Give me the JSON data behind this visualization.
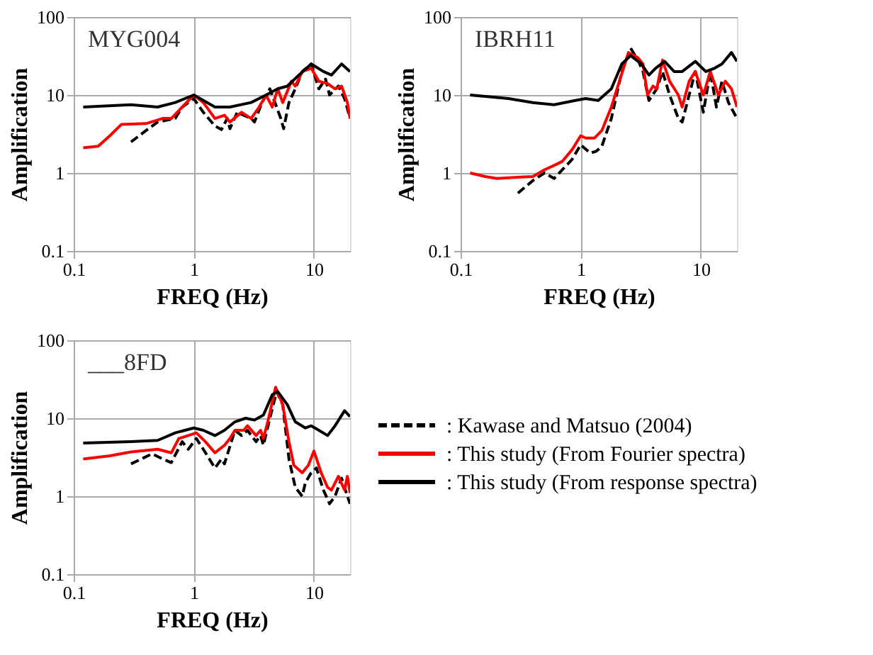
{
  "chart_data": [
    {
      "type": "line",
      "annotations": [
        "MYG004"
      ],
      "xlabel": "FREQ (Hz)",
      "ylabel": "Amplification",
      "log": "xy",
      "grid": true,
      "legend": false,
      "xlim": [
        0.1,
        20
      ],
      "xticks": [
        0.1,
        1,
        10
      ],
      "ylim": [
        0.1,
        100
      ],
      "yticks": [
        0.1,
        1,
        10,
        100
      ],
      "series": [
        {
          "color": "#000000",
          "line_style": "dashed",
          "x": [
            0.3,
            0.4,
            0.5,
            0.7,
            0.8,
            1,
            1.2,
            1.5,
            1.7,
            1.9,
            2,
            2.3,
            3,
            3.2,
            3.7,
            4.3,
            5.3,
            5.6,
            6.2,
            7,
            8,
            9.5,
            11,
            12.5,
            13.5,
            16,
            18,
            20
          ],
          "values": [
            2.5,
            3.5,
            4.5,
            5,
            7,
            9,
            6,
            4,
            3.6,
            5,
            3.7,
            6,
            5,
            4.5,
            8,
            12,
            5,
            3.7,
            8,
            12,
            20,
            25,
            12,
            16,
            10,
            13,
            9,
            5
          ]
        },
        {
          "color": "#ff0000",
          "line_style": "solid",
          "x": [
            0.12,
            0.16,
            0.2,
            0.25,
            0.4,
            0.55,
            0.65,
            0.8,
            1,
            1.2,
            1.5,
            1.8,
            2,
            2.5,
            3,
            3.5,
            4,
            4.5,
            5,
            5.5,
            6.5,
            7,
            8,
            9.5,
            11,
            13,
            15,
            17,
            19,
            20
          ],
          "values": [
            2.1,
            2.2,
            3,
            4.2,
            4.3,
            5,
            5,
            7,
            10,
            8,
            5,
            5.5,
            4.5,
            6,
            5,
            7,
            10,
            7,
            12,
            8,
            15,
            13,
            20,
            22,
            15,
            14,
            12,
            13,
            8,
            5
          ]
        },
        {
          "color": "#000000",
          "line_style": "solid",
          "x": [
            0.12,
            0.3,
            0.5,
            0.7,
            1,
            1.5,
            2,
            3,
            4,
            5,
            6,
            7.5,
            9.5,
            12,
            14,
            17,
            20
          ],
          "values": [
            7,
            7.5,
            7,
            8,
            10,
            7,
            7,
            8,
            10,
            12,
            13,
            18,
            25,
            20,
            18,
            25,
            20
          ]
        }
      ]
    },
    {
      "type": "line",
      "annotations": [
        "IBRH11"
      ],
      "xlabel": "FREQ (Hz)",
      "ylabel": "Amplification",
      "log": "xy",
      "grid": true,
      "legend": false,
      "xlim": [
        0.1,
        20
      ],
      "xticks": [
        0.1,
        1,
        10
      ],
      "ylim": [
        0.1,
        100
      ],
      "yticks": [
        0.1,
        1,
        10,
        100
      ],
      "series": [
        {
          "color": "#000000",
          "line_style": "dashed",
          "x": [
            0.3,
            0.4,
            0.5,
            0.6,
            0.85,
            1,
            1.2,
            1.35,
            1.5,
            1.8,
            2.2,
            2.6,
            3,
            3.3,
            3.7,
            4.3,
            4.8,
            5.5,
            6.5,
            7,
            8,
            9,
            10.5,
            12,
            13.5,
            15,
            17,
            20
          ],
          "values": [
            0.55,
            0.8,
            1,
            0.85,
            1.5,
            2.3,
            1.8,
            1.9,
            2.2,
            5,
            20,
            40,
            28,
            20,
            8.5,
            12,
            20,
            10,
            5,
            4.5,
            10,
            20,
            6,
            20,
            7,
            15,
            8,
            5
          ]
        },
        {
          "color": "#ff0000",
          "line_style": "solid",
          "x": [
            0.12,
            0.16,
            0.2,
            0.3,
            0.4,
            0.5,
            0.6,
            0.7,
            0.85,
            1,
            1.1,
            1.3,
            1.5,
            1.8,
            2.1,
            2.5,
            3,
            3.3,
            3.6,
            4,
            4.3,
            4.8,
            5.5,
            6.5,
            7,
            8,
            9,
            10.5,
            12,
            14,
            16,
            18,
            20
          ],
          "values": [
            1,
            0.9,
            0.85,
            0.88,
            0.9,
            1.1,
            1.25,
            1.4,
            2,
            3,
            2.8,
            2.8,
            3.5,
            7,
            15,
            35,
            30,
            25,
            10,
            13,
            12,
            28,
            15,
            10,
            7,
            15,
            20,
            10,
            20,
            10,
            15,
            12,
            7
          ]
        },
        {
          "color": "#000000",
          "line_style": "solid",
          "x": [
            0.12,
            0.25,
            0.4,
            0.6,
            0.9,
            1.1,
            1.4,
            1.8,
            2.2,
            2.6,
            3.2,
            3.7,
            4.2,
            5,
            6,
            7,
            9,
            11,
            13,
            15,
            18,
            20
          ],
          "values": [
            10,
            9,
            8,
            7.5,
            8.5,
            9,
            8.5,
            12,
            25,
            32,
            25,
            18,
            22,
            27,
            20,
            20,
            27,
            20,
            22,
            25,
            35,
            27
          ]
        }
      ]
    },
    {
      "type": "line",
      "annotations": [
        "___8FD"
      ],
      "xlabel": "FREQ (Hz)",
      "ylabel": "Amplification",
      "log": "xy",
      "grid": true,
      "legend": "right",
      "xlim": [
        0.1,
        20
      ],
      "xticks": [
        0.1,
        1,
        10
      ],
      "ylim": [
        0.1,
        100
      ],
      "yticks": [
        0.1,
        1,
        10,
        100
      ],
      "series": [
        {
          "name": ": Kawase and Matsuo (2004)",
          "color": "#000000",
          "line_style": "dashed",
          "x": [
            0.3,
            0.45,
            0.55,
            0.65,
            0.8,
            0.9,
            1.05,
            1.2,
            1.5,
            1.7,
            1.8,
            2.2,
            2.5,
            2.8,
            3.3,
            3.6,
            3.8,
            4.3,
            4.9,
            5.5,
            6.2,
            7,
            8,
            8.5,
            9.5,
            10.5,
            12,
            13.5,
            15,
            17,
            19,
            20
          ],
          "values": [
            2.6,
            3.5,
            3,
            2.7,
            5,
            4,
            5.5,
            4,
            2.3,
            3,
            2.6,
            7,
            6,
            7,
            5,
            6,
            4.5,
            10,
            22,
            15,
            3,
            1.3,
            1,
            1.5,
            2,
            2.3,
            1.2,
            0.8,
            1,
            1.7,
            1,
            0.8
          ]
        },
        {
          "name": ": This study (From Fourier spectra)",
          "color": "#ff0000",
          "line_style": "solid",
          "x": [
            0.12,
            0.2,
            0.3,
            0.5,
            0.65,
            0.75,
            0.9,
            1.05,
            1.25,
            1.5,
            1.8,
            2,
            2.2,
            2.6,
            2.8,
            3.3,
            3.6,
            3.8,
            4.2,
            4.8,
            5.5,
            6.2,
            6.8,
            8,
            9,
            10,
            11.5,
            13,
            14,
            16,
            18,
            19,
            20
          ],
          "values": [
            3,
            3.3,
            3.7,
            4,
            3.6,
            5.5,
            6,
            6.5,
            5,
            3.6,
            4.5,
            5.5,
            7,
            7,
            8,
            6,
            7,
            5.5,
            10,
            25,
            15,
            5,
            2.5,
            2,
            2.5,
            3.8,
            2,
            1.3,
            1.2,
            1.8,
            1.2,
            1.8,
            1.1
          ]
        },
        {
          "name": ": This study (From response spectra)",
          "color": "#000000",
          "line_style": "solid",
          "x": [
            0.12,
            0.3,
            0.5,
            0.7,
            1,
            1.2,
            1.5,
            1.8,
            2.2,
            2.7,
            3.2,
            3.8,
            4.5,
            5,
            6,
            7,
            8.5,
            9.5,
            11,
            13,
            15,
            18,
            20
          ],
          "values": [
            4.8,
            5,
            5.2,
            6.5,
            7.5,
            7,
            6,
            7,
            9,
            10,
            9.5,
            11,
            20,
            22,
            15,
            9,
            7.5,
            8,
            7,
            6,
            8,
            12.5,
            10.5
          ]
        }
      ]
    }
  ]
}
